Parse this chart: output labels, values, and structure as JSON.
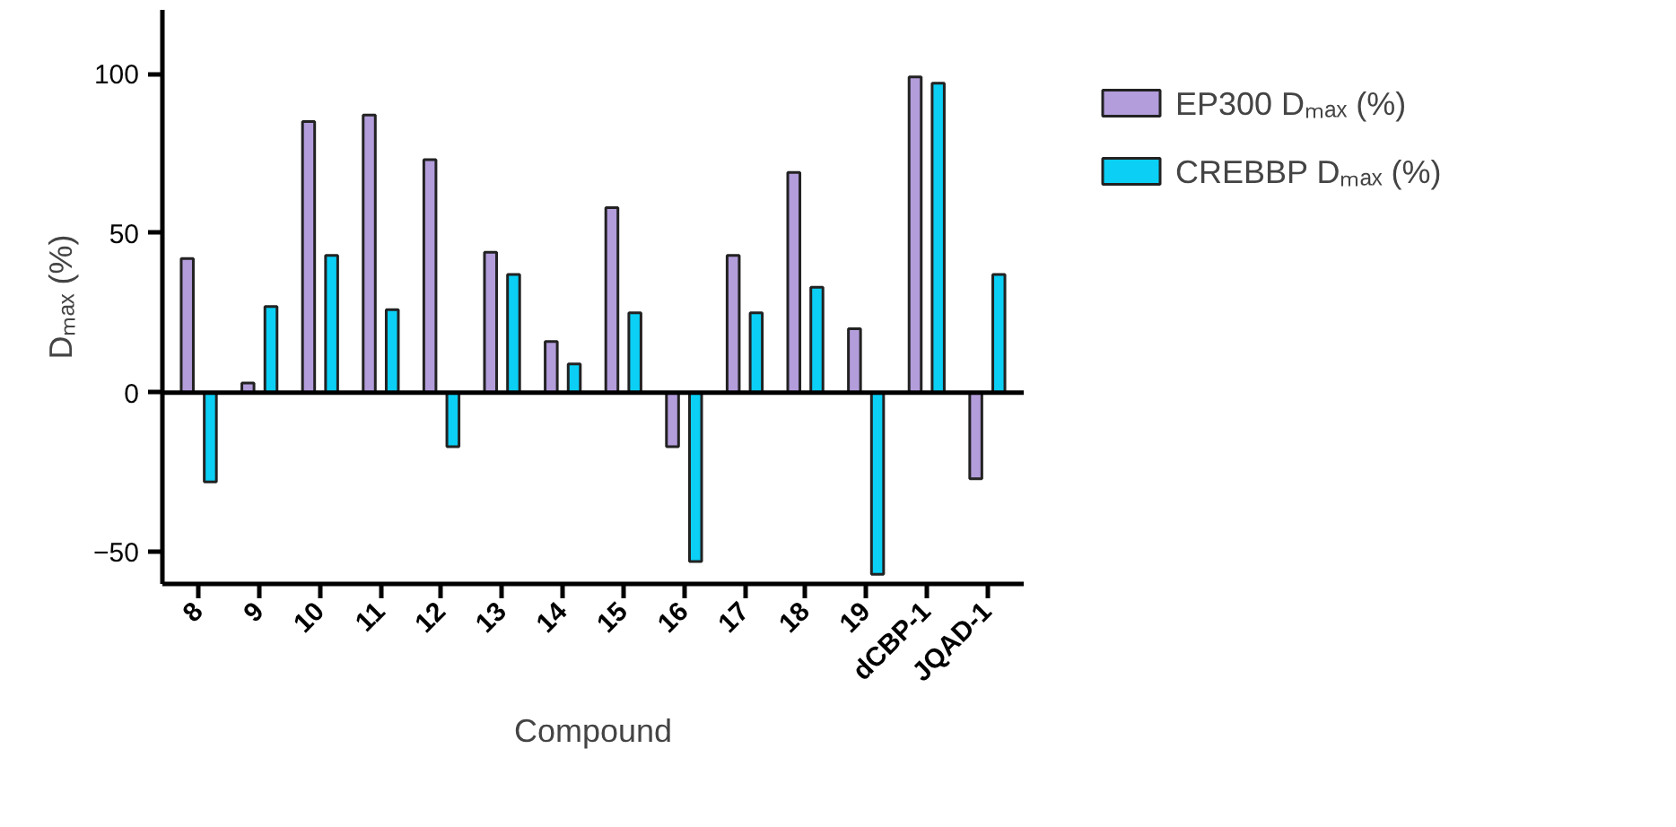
{
  "chart_data": {
    "type": "bar",
    "xlabel": "Compound",
    "ylabel": "Dₘₐₓ (%)",
    "categories": [
      "8",
      "9",
      "10",
      "11",
      "12",
      "13",
      "14",
      "15",
      "16",
      "17",
      "18",
      "19",
      "dCBP-1",
      "JQAD-1"
    ],
    "series": [
      {
        "name": "EP300 Dₘₐₓ (%)",
        "color": "#b39ddb",
        "values": [
          42,
          3,
          85,
          87,
          73,
          44,
          16,
          58,
          -17,
          43,
          69,
          20,
          99,
          -27
        ]
      },
      {
        "name": "CREBBP Dₘₐₓ (%)",
        "color": "#0bcff5",
        "values": [
          -28,
          27,
          43,
          26,
          -17,
          37,
          9,
          25,
          -53,
          25,
          33,
          -57,
          97,
          37
        ]
      }
    ],
    "ref_lines": [
      {
        "axis": "y",
        "value": 0,
        "color": "#000000"
      }
    ],
    "ylim": [
      -60,
      120
    ],
    "yticks": [
      -50,
      0,
      50,
      100
    ],
    "grid": false,
    "legend": "top right"
  }
}
